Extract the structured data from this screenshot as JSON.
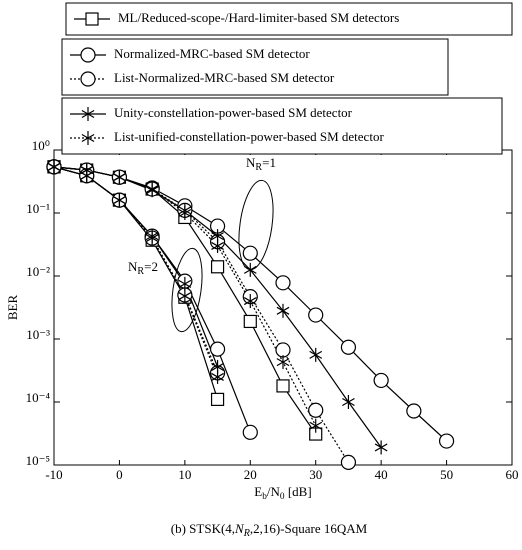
{
  "chart_data": {
    "type": "line",
    "x_label": [
      "E",
      "b",
      "/N",
      "0",
      " [dB]"
    ],
    "y_label": "BER",
    "caption": [
      "(b) STSK(4,",
      "N",
      "R",
      ",2,16)-Square 16QAM"
    ],
    "x": [
      -10,
      -5,
      0,
      5,
      10,
      15,
      20,
      25,
      30,
      35,
      40,
      45,
      50
    ],
    "xlim": [
      -10,
      60
    ],
    "xticks": [
      -10,
      0,
      10,
      20,
      30,
      40,
      50,
      60
    ],
    "ylim": [
      1e-05,
      1
    ],
    "log_y": true,
    "yticks": [
      {
        "value": 1,
        "label": "10⁰"
      },
      {
        "value": 0.1,
        "label": "10⁻¹"
      },
      {
        "value": 0.01,
        "label": "10⁻²"
      },
      {
        "value": 0.001,
        "label": "10⁻³"
      },
      {
        "value": 0.0001,
        "label": "10⁻⁴"
      },
      {
        "value": 1e-05,
        "label": "10⁻⁵"
      }
    ],
    "grid": false,
    "color": "#000000",
    "series": [
      {
        "name": "ML/Reduced-scope-/Hard-limiter-based SM detectors",
        "marker": "square",
        "dash": "solid",
        "curves": [
          {
            "values": [
              0.54,
              0.48,
              0.37,
              0.24,
              0.085,
              0.014,
              0.0019,
              0.00018,
              3.1e-05,
              null,
              null,
              null,
              null
            ]
          },
          {
            "values": [
              0.54,
              0.39,
              0.16,
              0.037,
              0.0046,
              0.00011,
              null,
              null,
              null,
              null,
              null,
              null,
              null
            ]
          }
        ]
      },
      {
        "name": "Normalized-MRC-based SM detector",
        "marker": "circle",
        "dash": "solid",
        "curves": [
          {
            "values": [
              0.54,
              0.48,
              0.37,
              0.25,
              0.13,
              0.062,
              0.023,
              0.0078,
              0.0024,
              0.00074,
              0.00022,
              7.2e-05,
              2.4e-05
            ]
          },
          {
            "values": [
              0.54,
              0.39,
              0.16,
              0.043,
              0.0083,
              0.00069,
              3.3e-05,
              null,
              null,
              null,
              null,
              null,
              null
            ]
          }
        ]
      },
      {
        "name": "List-Normalized-MRC-based SM detector",
        "marker": "circle",
        "dash": "dotted",
        "curves": [
          {
            "values": [
              0.54,
              0.48,
              0.37,
              0.24,
              0.11,
              0.035,
              0.0047,
              0.00067,
              7.4e-05,
              1.1e-05,
              null,
              null,
              null
            ]
          },
          {
            "values": [
              0.54,
              0.39,
              0.16,
              0.04,
              0.005,
              0.00029,
              null,
              null,
              null,
              null,
              null,
              null,
              null
            ]
          }
        ]
      },
      {
        "name": "Unity-constellation-power-based SM detector",
        "marker": "asterisk",
        "dash": "solid",
        "curves": [
          {
            "values": [
              0.54,
              0.48,
              0.37,
              0.23,
              0.11,
              0.043,
              0.0125,
              0.0028,
              0.00056,
              0.0001,
              1.9e-05,
              null,
              null
            ]
          },
          {
            "values": [
              0.54,
              0.39,
              0.16,
              0.043,
              0.0075,
              0.00036,
              null,
              null,
              null,
              null,
              null,
              null,
              null
            ]
          }
        ]
      },
      {
        "name": "List-unified-constellation-power-based SM detector",
        "marker": "asterisk",
        "dash": "dotted",
        "curves": [
          {
            "values": [
              0.54,
              0.48,
              0.37,
              0.24,
              0.1,
              0.03,
              0.004,
              0.00043,
              4.2e-05,
              null,
              null,
              null,
              null
            ]
          },
          {
            "values": [
              0.54,
              0.39,
              0.16,
              0.04,
              0.0048,
              0.00025,
              null,
              null,
              null,
              null,
              null,
              null,
              null
            ]
          }
        ]
      }
    ],
    "annotations": [
      {
        "parts": [
          "N",
          "R",
          "=1"
        ]
      },
      {
        "parts": [
          "N",
          "R",
          "=2"
        ]
      }
    ]
  }
}
